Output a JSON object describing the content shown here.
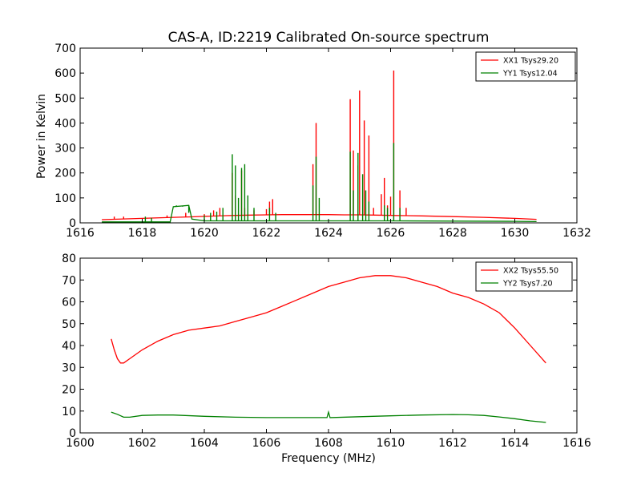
{
  "title": "CAS-A, ID:2219 Calibrated On-source spectrum",
  "chart_data": [
    {
      "type": "line",
      "title": "CAS-A, ID:2219 Calibrated On-source spectrum",
      "xlabel": "",
      "ylabel": "Power in Kelvin",
      "xlim": [
        1616,
        1632
      ],
      "ylim": [
        0,
        700
      ],
      "xticks": [
        "1616",
        "1618",
        "1620",
        "1622",
        "1624",
        "1626",
        "1628",
        "1630",
        "1632"
      ],
      "yticks": [
        "0",
        "100",
        "200",
        "300",
        "400",
        "500",
        "600",
        "700"
      ],
      "grid": false,
      "legend": "top-right",
      "series": [
        {
          "name": "XX1 Tsys29.20",
          "color": "#ff0000",
          "x": [
            1616.7,
            1617.5,
            1618.2,
            1619.0,
            1619.6,
            1620.2,
            1620.7,
            1621.0,
            1621.5,
            1622.0,
            1622.5,
            1623.0,
            1623.5,
            1624.0,
            1624.5,
            1625.0,
            1625.5,
            1626.0,
            1626.5,
            1627.0,
            1628.0,
            1629.0,
            1630.0,
            1630.7
          ],
          "y": [
            13,
            16,
            19,
            22,
            24,
            27,
            29,
            30,
            31,
            32,
            33,
            33,
            33,
            33,
            32,
            32,
            31,
            30,
            29,
            28,
            25,
            22,
            18,
            14
          ],
          "spikes": [
            [
              1617.1,
              25
            ],
            [
              1617.4,
              25
            ],
            [
              1618.8,
              30
            ],
            [
              1619.4,
              40
            ],
            [
              1620.0,
              35
            ],
            [
              1620.3,
              50
            ],
            [
              1620.5,
              60
            ],
            [
              1620.9,
              200
            ],
            [
              1621.0,
              110
            ],
            [
              1621.2,
              210
            ],
            [
              1621.3,
              60
            ],
            [
              1621.6,
              50
            ],
            [
              1622.0,
              55
            ],
            [
              1622.1,
              85
            ],
            [
              1622.2,
              95
            ],
            [
              1623.5,
              235
            ],
            [
              1623.6,
              400
            ],
            [
              1624.7,
              495
            ],
            [
              1624.8,
              290
            ],
            [
              1624.95,
              230
            ],
            [
              1625.0,
              530
            ],
            [
              1625.15,
              410
            ],
            [
              1625.3,
              350
            ],
            [
              1625.45,
              60
            ],
            [
              1625.7,
              115
            ],
            [
              1625.8,
              180
            ],
            [
              1625.9,
              70
            ],
            [
              1626.0,
              105
            ],
            [
              1626.1,
              610
            ],
            [
              1626.3,
              130
            ],
            [
              1626.5,
              60
            ]
          ]
        },
        {
          "name": "YY1 Tsys12.04",
          "color": "#008000",
          "x": [
            1616.7,
            1618.0,
            1618.9,
            1619.0,
            1619.5,
            1619.6,
            1620.0,
            1622.0,
            1624.0,
            1626.0,
            1628.0,
            1630.0,
            1630.7
          ],
          "y": [
            4,
            4,
            4,
            65,
            70,
            15,
            8,
            8,
            8,
            8,
            7,
            6,
            5
          ],
          "spikes": [
            [
              1618.1,
              25
            ],
            [
              1618.3,
              20
            ],
            [
              1619.1,
              70
            ],
            [
              1619.3,
              65
            ],
            [
              1619.5,
              40
            ],
            [
              1620.0,
              30
            ],
            [
              1620.2,
              40
            ],
            [
              1620.4,
              45
            ],
            [
              1620.6,
              60
            ],
            [
              1620.9,
              275
            ],
            [
              1621.0,
              230
            ],
            [
              1621.1,
              100
            ],
            [
              1621.2,
              220
            ],
            [
              1621.3,
              235
            ],
            [
              1621.4,
              110
            ],
            [
              1621.6,
              60
            ],
            [
              1622.1,
              60
            ],
            [
              1622.3,
              40
            ],
            [
              1623.5,
              150
            ],
            [
              1623.6,
              265
            ],
            [
              1623.7,
              100
            ],
            [
              1624.7,
              285
            ],
            [
              1624.8,
              130
            ],
            [
              1624.95,
              280
            ],
            [
              1625.1,
              195
            ],
            [
              1625.2,
              130
            ],
            [
              1625.3,
              85
            ],
            [
              1625.8,
              70
            ],
            [
              1625.9,
              60
            ],
            [
              1626.1,
              320
            ],
            [
              1626.3,
              60
            ]
          ]
        }
      ]
    },
    {
      "type": "line",
      "title": "",
      "xlabel": "Frequency (MHz)",
      "ylabel": "",
      "xlim": [
        1600,
        1616
      ],
      "ylim": [
        0,
        80
      ],
      "xticks": [
        "1600",
        "1602",
        "1604",
        "1606",
        "1608",
        "1610",
        "1612",
        "1614",
        "1616"
      ],
      "yticks": [
        "0",
        "10",
        "20",
        "30",
        "40",
        "50",
        "60",
        "70",
        "80"
      ],
      "grid": false,
      "legend": "top-right",
      "series": [
        {
          "name": "XX2 Tsys55.50",
          "color": "#ff0000",
          "x": [
            1601.0,
            1601.1,
            1601.2,
            1601.3,
            1601.4,
            1601.6,
            1602.0,
            1602.5,
            1603.0,
            1603.5,
            1604.0,
            1604.5,
            1605.0,
            1605.5,
            1606.0,
            1606.5,
            1607.0,
            1607.5,
            1608.0,
            1608.5,
            1609.0,
            1609.5,
            1610.0,
            1610.5,
            1611.0,
            1611.5,
            1612.0,
            1612.5,
            1613.0,
            1613.5,
            1614.0,
            1614.5,
            1615.0
          ],
          "y": [
            43,
            38,
            34,
            32,
            32,
            34,
            38,
            42,
            45,
            47,
            48,
            49,
            51,
            53,
            55,
            58,
            61,
            64,
            67,
            69,
            71,
            72,
            72,
            71,
            69,
            67,
            64,
            62,
            59,
            55,
            48,
            40,
            32
          ]
        },
        {
          "name": "YY2 Tsys7.20",
          "color": "#008000",
          "x": [
            1601.0,
            1601.2,
            1601.4,
            1601.6,
            1602.0,
            1602.5,
            1603.0,
            1604.0,
            1605.0,
            1606.0,
            1607.0,
            1607.95,
            1608.0,
            1608.05,
            1609.0,
            1610.0,
            1611.0,
            1612.0,
            1612.5,
            1613.0,
            1613.5,
            1614.0,
            1614.5,
            1615.0
          ],
          "y": [
            9.5,
            8.5,
            7.2,
            7.2,
            8.0,
            8.2,
            8.2,
            7.6,
            7.2,
            7.0,
            7.0,
            7.0,
            9.5,
            7.0,
            7.4,
            7.8,
            8.2,
            8.4,
            8.3,
            8.0,
            7.3,
            6.5,
            5.5,
            4.8
          ]
        }
      ]
    }
  ]
}
